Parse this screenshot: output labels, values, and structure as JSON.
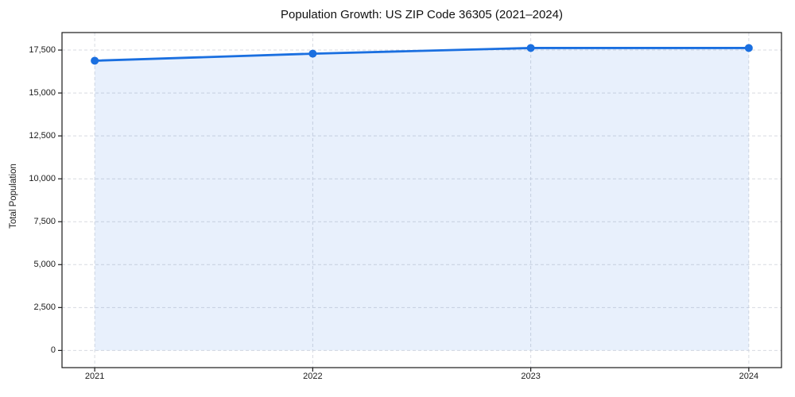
{
  "chart_data": {
    "type": "area",
    "title": "Population Growth: US ZIP Code 36305 (2021–2024)",
    "xlabel": "",
    "ylabel": "Total Population",
    "x": [
      2021,
      2022,
      2023,
      2024
    ],
    "x_tick_labels": [
      "2021",
      "2022",
      "2023",
      "2024"
    ],
    "series": [
      {
        "name": "Total Population",
        "values": [
          16880,
          17290,
          17620,
          17620
        ]
      }
    ],
    "y_ticks": [
      0,
      2500,
      5000,
      7500,
      10000,
      12500,
      15000,
      17500
    ],
    "y_tick_labels": [
      "0",
      "2,500",
      "5,000",
      "7,500",
      "10,000",
      "12,500",
      "15,000",
      "17,500"
    ],
    "xlim": [
      2020.85,
      2024.15
    ],
    "ylim": [
      -1000,
      18520
    ],
    "grid": "dashed",
    "legend": "none",
    "fill_to_zero": true,
    "colors": {
      "line": "#1a6fe0",
      "marker": "#1a6fe0",
      "fill": "rgba(26,111,224,0.10)",
      "grid": "#d7dae0",
      "spine": "#1a1a1a",
      "text": "#1a1a1a",
      "background": "#ffffff"
    }
  }
}
